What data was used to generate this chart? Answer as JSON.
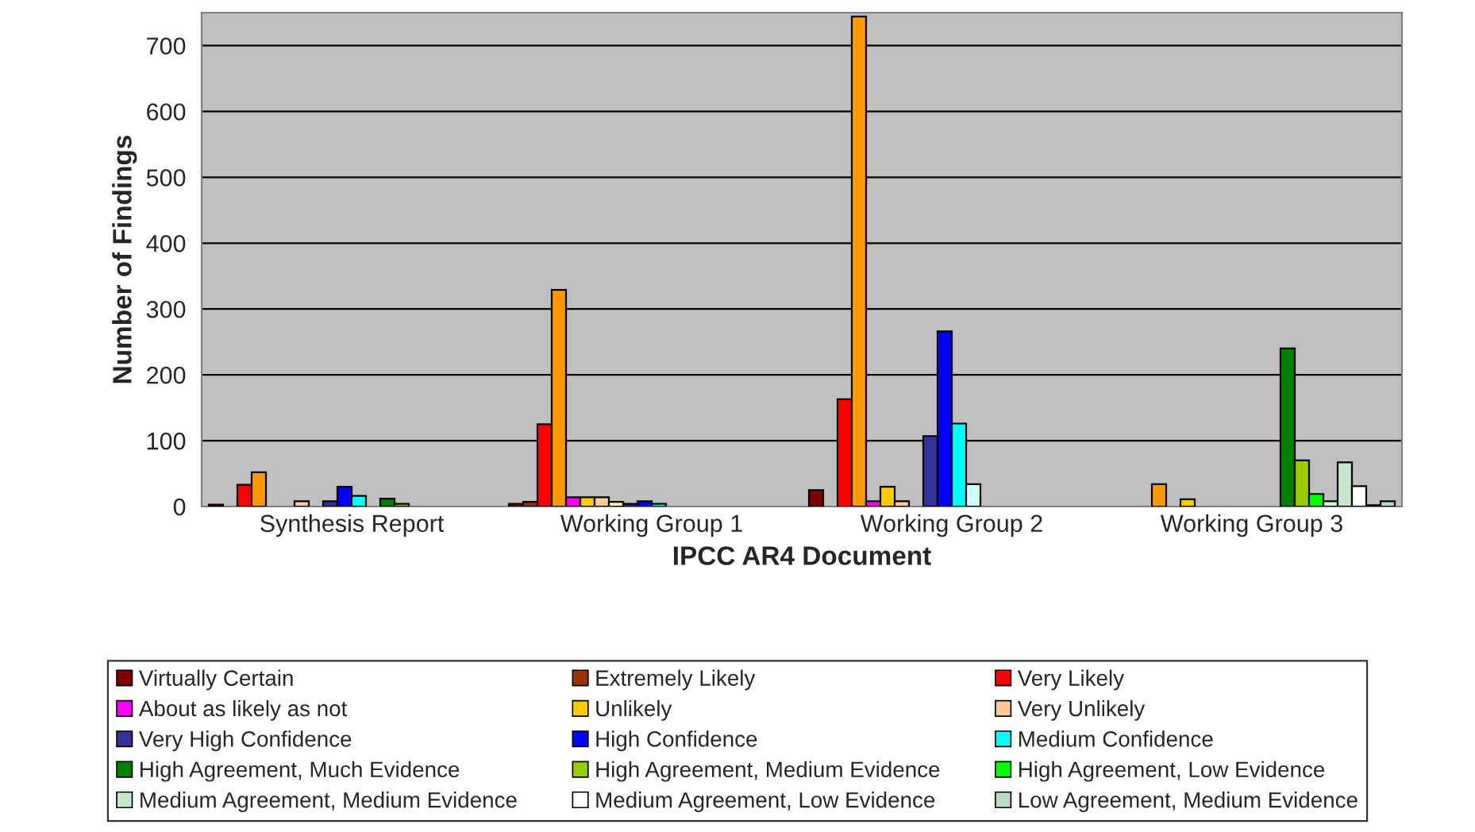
{
  "chart_data": {
    "type": "bar",
    "xlabel": "IPCC AR4 Document",
    "ylabel": "Number of Findings",
    "categories": [
      "Synthesis Report",
      "Working Group 1",
      "Working Group 2",
      "Working Group 3"
    ],
    "ylim": [
      0,
      750
    ],
    "yticks": [
      0,
      100,
      200,
      300,
      400,
      500,
      600,
      700
    ],
    "grid": "y",
    "legend": "bottom",
    "series": [
      {
        "name": "Virtually Certain",
        "color": "#800000",
        "values": [
          3,
          4,
          25,
          null
        ]
      },
      {
        "name": "Extremely Likely",
        "color": "#993300",
        "values": [
          null,
          7,
          null,
          null
        ]
      },
      {
        "name": "Very Likely",
        "color": "#ff0000",
        "values": [
          33,
          125,
          163,
          null
        ]
      },
      {
        "color": "#ff9900",
        "values": [
          52,
          329,
          744,
          34
        ]
      },
      {
        "name": "About as likely as not",
        "color": "#ff00ff",
        "values": [
          null,
          14,
          8,
          null
        ]
      },
      {
        "name": "Unlikely",
        "color": "#ffcc00",
        "values": [
          null,
          14,
          30,
          11
        ]
      },
      {
        "name": "Very Unlikely",
        "color": "#ffcc99",
        "values": [
          8,
          14,
          8,
          null
        ]
      },
      {
        "color": "#ffff99",
        "values": [
          null,
          7,
          null,
          null
        ]
      },
      {
        "name": "Very High Confidence",
        "color": "#333399",
        "values": [
          8,
          4,
          107,
          null
        ]
      },
      {
        "name": "High Confidence",
        "color": "#0000ff",
        "values": [
          30,
          8,
          266,
          null
        ]
      },
      {
        "name": "Medium Confidence",
        "color": "#00ffff",
        "values": [
          16,
          4,
          126,
          null
        ]
      },
      {
        "color": "#ccffff",
        "values": [
          null,
          null,
          34,
          null
        ]
      },
      {
        "name": "High Agreement, Much Evidence",
        "color": "#008000",
        "values": [
          12,
          null,
          null,
          240
        ]
      },
      {
        "name": "High Agreement, Medium Evidence",
        "color": "#99cc00",
        "values": [
          4,
          null,
          null,
          70
        ]
      },
      {
        "name": "High Agreement, Low Evidence",
        "color": "#00ff00",
        "values": [
          null,
          null,
          null,
          19
        ]
      },
      {
        "color": "#ccffcc",
        "values": [
          null,
          null,
          null,
          8
        ]
      },
      {
        "name": "Medium Agreement, Medium Evidence",
        "color": "#c8e6c8",
        "values": [
          null,
          null,
          null,
          67
        ]
      },
      {
        "name": "Medium Agreement, Low Evidence",
        "color": "#ffffff",
        "values": [
          null,
          null,
          null,
          31
        ]
      },
      {
        "color": "#336633",
        "values": [
          null,
          null,
          null,
          2
        ]
      },
      {
        "name": "Low Agreement, Medium Evidence",
        "color": "#b8dcc8",
        "values": [
          null,
          null,
          null,
          8
        ]
      }
    ]
  }
}
